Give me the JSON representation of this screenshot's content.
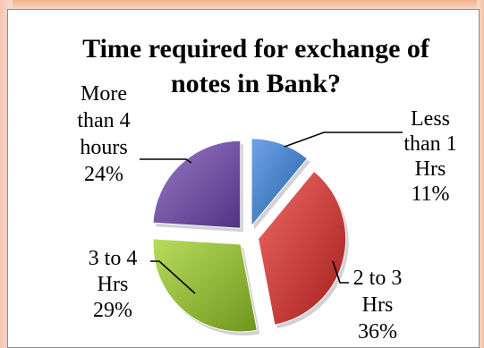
{
  "chart_data": {
    "type": "pie",
    "title_lines": [
      "Time required for exchange of",
      "notes in Bank?"
    ],
    "slices": [
      {
        "category": "Less than 1 Hrs",
        "value": 11,
        "color": "#3b78c5",
        "label_lines": [
          "Less",
          "than 1",
          "Hrs",
          "11%"
        ]
      },
      {
        "category": "2 to 3 Hrs",
        "value": 36,
        "color": "#c9312e",
        "label_lines": [
          "2 to 3",
          "Hrs",
          "36%"
        ]
      },
      {
        "category": "3 to 4 Hrs",
        "value": 29,
        "color": "#8db631",
        "label_lines": [
          "3 to 4",
          "Hrs",
          "29%"
        ]
      },
      {
        "category": "More than 4 hours",
        "value": 24,
        "color": "#6c4aa0",
        "label_lines": [
          "More",
          "than 4",
          "hours",
          "24%"
        ]
      }
    ]
  }
}
